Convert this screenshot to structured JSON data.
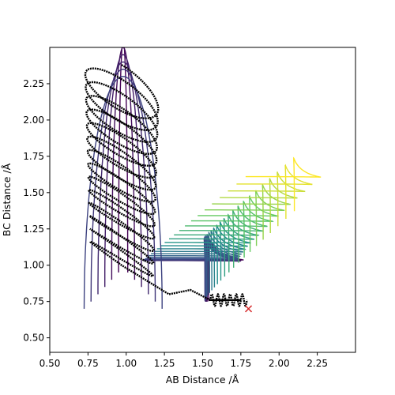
{
  "chart_data": {
    "type": "line",
    "title": "",
    "xlabel": "AB Distance /Å",
    "ylabel": "BC Distance /Å",
    "xlim": [
      0.5,
      2.5
    ],
    "ylim": [
      0.4,
      2.5
    ],
    "xticks": [
      "0.50",
      "0.75",
      "1.00",
      "1.25",
      "1.50",
      "1.75",
      "2.00",
      "2.25"
    ],
    "yticks": [
      "0.50",
      "0.75",
      "1.00",
      "1.25",
      "1.50",
      "1.75",
      "2.00",
      "2.25"
    ],
    "grid": false,
    "legend": "none",
    "contour_colormap": [
      "#440154",
      "#3b528b",
      "#21918c",
      "#5ec962",
      "#fde725"
    ],
    "trajectory_color": "#000000",
    "trajectory": {
      "start": [
        0.77,
        2.24
      ],
      "oscillation_region": {
        "x": [
          0.75,
          1.25
        ],
        "y": [
          1.0,
          2.25
        ]
      },
      "exit_channel": [
        [
          1.28,
          0.8
        ],
        [
          1.42,
          0.83
        ],
        [
          1.55,
          0.76
        ],
        [
          1.75,
          0.76
        ]
      ]
    },
    "end_point": {
      "x": 1.8,
      "y": 0.7,
      "marker": "x",
      "color": "#d62728"
    }
  }
}
